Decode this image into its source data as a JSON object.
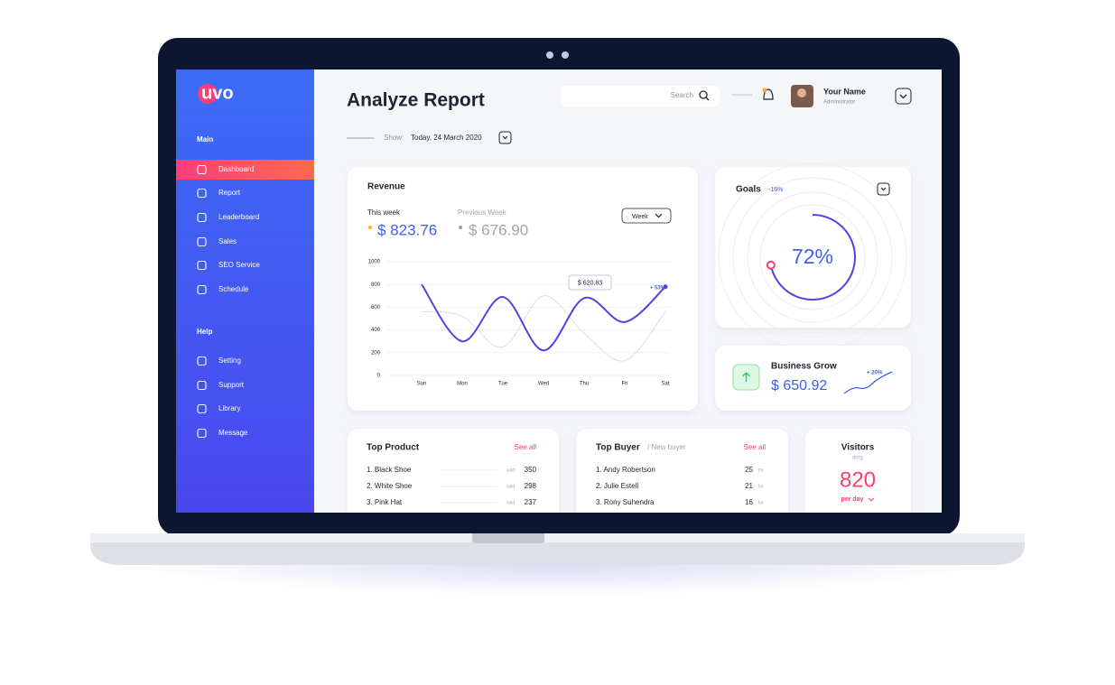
{
  "logo": "uvo",
  "sidebar": {
    "sections": [
      {
        "title": "Main",
        "items": [
          "Dashboard",
          "Report",
          "Leaderboard",
          "Sales",
          "SEO Service",
          "Schedule"
        ]
      },
      {
        "title": "Help",
        "items": [
          "Setting",
          "Support",
          "Library",
          "Message"
        ]
      }
    ]
  },
  "header": {
    "title": "Analyze Report",
    "search": "Search",
    "user_name": "Your Name",
    "user_role": "Administrator",
    "show_label": "Show:",
    "date": "Today, 24 March 2020"
  },
  "revenue": {
    "title": "Revenue",
    "this_week_label": "This week",
    "this_week_value": "$ 823.76",
    "previous_week_label": "Previous Week",
    "previous_week_value": "$ 676.90",
    "period": "Week",
    "tooltip": "$ 620.83",
    "change": "+ 53%",
    "chart": {
      "type": "line",
      "categories": [
        "Sun",
        "Mon",
        "Tue",
        "Wed",
        "Thu",
        "Fri",
        "Sat"
      ],
      "ylim": [
        0,
        1000
      ],
      "yticks": [
        0,
        200,
        400,
        600,
        800,
        1000
      ],
      "grid": true,
      "series": [
        {
          "color": "#5a3fe0",
          "values": [
            800,
            300,
            690,
            220,
            680,
            470,
            780
          ]
        },
        {
          "color": "#dcdee6",
          "values": [
            560,
            520,
            250,
            700,
            370,
            130,
            560
          ]
        }
      ]
    }
  },
  "goals": {
    "title": "Goals",
    "change": "-16%",
    "value": 72,
    "value_label": "72%"
  },
  "business_grow": {
    "title": "Business Grow",
    "value": "$ 650.92",
    "change": "+ 20%"
  },
  "top_product": {
    "title": "Top Product",
    "see_all": "See all",
    "rows": [
      [
        "1. Black Shoe",
        "sold",
        350
      ],
      [
        "2. White Shoe",
        "sold",
        298
      ],
      [
        "3. Pink Hat",
        "sold",
        237
      ]
    ]
  },
  "top_buyer": {
    "title": "Top Buyer",
    "subtitle": "/ New buyer",
    "see_all": "See all",
    "rows": [
      [
        "1. Andy Robertson",
        25,
        "trx"
      ],
      [
        "2. Julie Estell",
        21,
        "trx"
      ],
      [
        "3. Rony Suhendra",
        16,
        "trx"
      ]
    ]
  },
  "visitors": {
    "title": "Visitors",
    "subtitle": "avrg",
    "value": 820,
    "period": "per day"
  }
}
